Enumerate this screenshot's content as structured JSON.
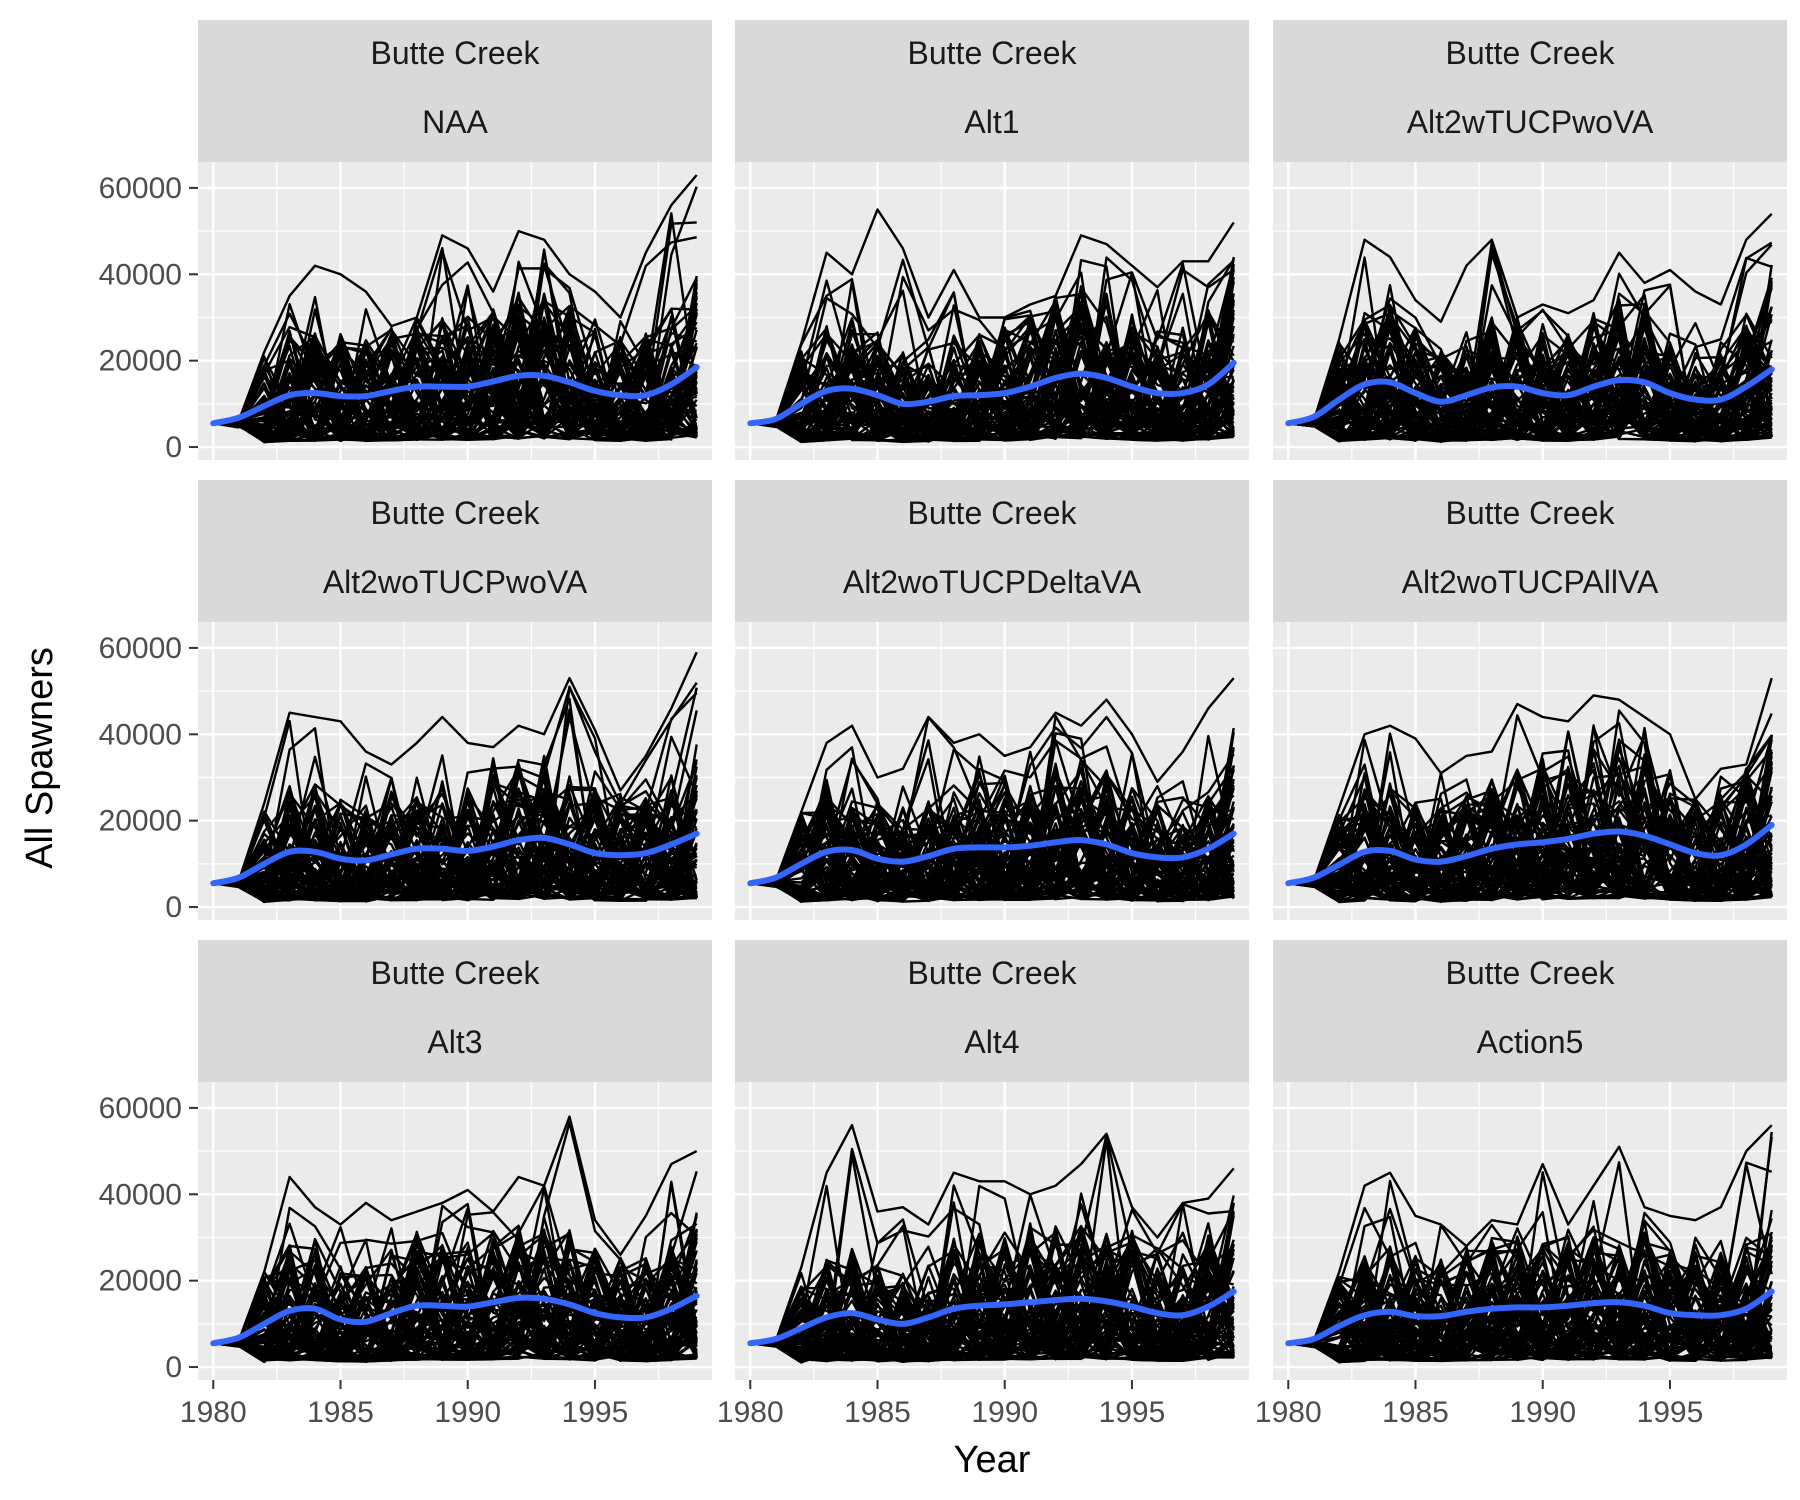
{
  "chart_data": {
    "type": "line",
    "facet_layout": "3x3",
    "xlabel": "Year",
    "ylabel": "All Spawners",
    "xlim": [
      1979.4,
      1999.6
    ],
    "ylim": [
      -3000,
      66000
    ],
    "x_ticks": [
      1980,
      1985,
      1990,
      1995
    ],
    "y_ticks": [
      0,
      20000,
      40000,
      60000
    ],
    "x_tick_labels": [
      "1980",
      "1985",
      "1990",
      "1995"
    ],
    "y_tick_labels": [
      "0",
      "20000",
      "40000",
      "60000"
    ],
    "grid": true,
    "years": [
      1980,
      1981,
      1982,
      1983,
      1984,
      1985,
      1986,
      1987,
      1988,
      1989,
      1990,
      1991,
      1992,
      1993,
      1994,
      1995,
      1996,
      1997,
      1998,
      1999
    ],
    "smooth_color": "#3366ff",
    "line_color": "#000000",
    "panels": [
      {
        "strip_top": "Butte Creek",
        "strip_bottom": "NAA",
        "smooth": [
          5500,
          6800,
          9500,
          12000,
          12500,
          11800,
          11800,
          13000,
          14000,
          14000,
          14000,
          15200,
          16500,
          16500,
          15000,
          13000,
          12000,
          12000,
          14500,
          18500
        ],
        "peaks": [
          5500,
          6000,
          22000,
          35000,
          42000,
          40000,
          36000,
          28000,
          30000,
          49000,
          46000,
          36000,
          50000,
          48000,
          40000,
          36000,
          30000,
          45000,
          56000,
          63000
        ]
      },
      {
        "strip_top": "Butte Creek",
        "strip_bottom": "Alt1",
        "smooth": [
          5500,
          6500,
          10000,
          13000,
          13500,
          12000,
          10000,
          10500,
          11800,
          12000,
          12500,
          14000,
          16000,
          17000,
          16000,
          14000,
          12500,
          12500,
          14500,
          19500
        ],
        "peaks": [
          5500,
          6000,
          24000,
          45000,
          40000,
          55000,
          46000,
          30000,
          41000,
          30000,
          30000,
          33000,
          35000,
          49000,
          47000,
          42000,
          37000,
          43000,
          43000,
          52000
        ]
      },
      {
        "strip_top": "Butte Creek",
        "strip_bottom": "Alt2wTUCPwoVA",
        "smooth": [
          5500,
          7000,
          11000,
          14500,
          15000,
          12500,
          10500,
          12000,
          13800,
          14000,
          12500,
          12000,
          14000,
          15500,
          15000,
          12500,
          11000,
          11000,
          14000,
          18000
        ],
        "peaks": [
          5500,
          6000,
          25000,
          48000,
          44000,
          34000,
          29000,
          42000,
          48000,
          30000,
          33000,
          31000,
          34000,
          45000,
          38000,
          41000,
          36000,
          33000,
          48000,
          54000
        ]
      },
      {
        "strip_top": "Butte Creek",
        "strip_bottom": "Alt2woTUCPwoVA",
        "smooth": [
          5500,
          6800,
          10000,
          12800,
          12800,
          11200,
          10800,
          12200,
          13500,
          13500,
          13000,
          14000,
          15500,
          16000,
          14500,
          12500,
          12000,
          12500,
          14500,
          17000
        ],
        "peaks": [
          5500,
          6000,
          24000,
          45000,
          44000,
          43000,
          36000,
          33000,
          38000,
          44000,
          38000,
          37000,
          42000,
          40000,
          53000,
          41000,
          27000,
          35000,
          46000,
          59000
        ]
      },
      {
        "strip_top": "Butte Creek",
        "strip_bottom": "Alt2woTUCPDeltaVA",
        "smooth": [
          5500,
          6800,
          10000,
          12800,
          13200,
          11200,
          10500,
          11800,
          13500,
          13800,
          13800,
          14200,
          15000,
          15500,
          14500,
          12500,
          11500,
          11500,
          13500,
          17000
        ],
        "peaks": [
          5500,
          6000,
          22000,
          38000,
          42000,
          30000,
          32000,
          44000,
          38000,
          40000,
          35000,
          37000,
          45000,
          42000,
          48000,
          40000,
          29000,
          36000,
          46000,
          53000
        ]
      },
      {
        "strip_top": "Butte Creek",
        "strip_bottom": "Alt2woTUCPAllVA",
        "smooth": [
          5500,
          6800,
          9800,
          12800,
          13000,
          11000,
          10500,
          11800,
          13500,
          14500,
          15000,
          15800,
          17000,
          17500,
          16500,
          14500,
          12500,
          12000,
          14500,
          19000
        ],
        "peaks": [
          5500,
          6000,
          23000,
          40000,
          42000,
          39000,
          31000,
          35000,
          36000,
          47000,
          44000,
          43000,
          49000,
          48000,
          44000,
          40000,
          25000,
          32000,
          33000,
          53000
        ]
      },
      {
        "strip_top": "Butte Creek",
        "strip_bottom": "Alt3",
        "smooth": [
          5500,
          6800,
          10000,
          13000,
          13500,
          11000,
          10500,
          12500,
          14200,
          14200,
          14000,
          15000,
          16000,
          15800,
          14500,
          12500,
          11500,
          11500,
          13500,
          16500
        ],
        "peaks": [
          5500,
          6000,
          22000,
          44000,
          37000,
          33000,
          38000,
          34000,
          36000,
          38000,
          41000,
          36000,
          44000,
          42000,
          58000,
          34000,
          26000,
          35000,
          47000,
          50000
        ]
      },
      {
        "strip_top": "Butte Creek",
        "strip_bottom": "Alt4",
        "smooth": [
          5500,
          6500,
          9000,
          11500,
          12500,
          11000,
          10000,
          11500,
          13500,
          14200,
          14500,
          15000,
          15500,
          15800,
          15200,
          14000,
          12500,
          12000,
          14000,
          17500
        ],
        "peaks": [
          5500,
          6000,
          23000,
          45000,
          56000,
          36000,
          37000,
          33000,
          45000,
          43000,
          43000,
          40000,
          42000,
          47000,
          54000,
          37000,
          30000,
          38000,
          39000,
          46000
        ]
      },
      {
        "strip_top": "Butte Creek",
        "strip_bottom": "Action5",
        "smooth": [
          5500,
          6500,
          9500,
          12000,
          12800,
          11800,
          11800,
          12800,
          13500,
          13800,
          13800,
          14200,
          14800,
          15000,
          14200,
          12500,
          12000,
          12000,
          13500,
          17500
        ],
        "peaks": [
          5500,
          6000,
          22000,
          42000,
          45000,
          35000,
          33000,
          28000,
          34000,
          33000,
          47000,
          33000,
          42000,
          51000,
          37000,
          35000,
          34000,
          37000,
          50000,
          56000
        ]
      }
    ]
  }
}
